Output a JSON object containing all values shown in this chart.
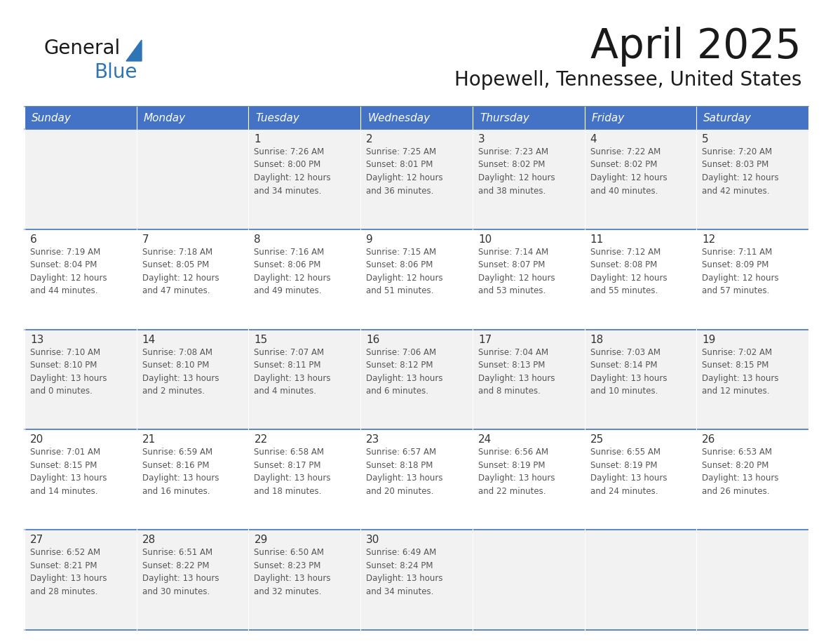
{
  "title": "April 2025",
  "subtitle": "Hopewell, Tennessee, United States",
  "days_of_week": [
    "Sunday",
    "Monday",
    "Tuesday",
    "Wednesday",
    "Thursday",
    "Friday",
    "Saturday"
  ],
  "header_bg": "#4472C4",
  "header_text": "#FFFFFF",
  "row_bg_even": "#F2F2F2",
  "row_bg_odd": "#FFFFFF",
  "cell_border_color": "#4472C4",
  "day_number_color": "#333333",
  "text_color": "#555555",
  "logo_general_color": "#1a1a1a",
  "logo_blue_color": "#2E75B6",
  "logo_triangle_color": "#2E75B6",
  "title_color": "#1a1a1a",
  "weeks": [
    [
      {
        "day": "",
        "info": ""
      },
      {
        "day": "",
        "info": ""
      },
      {
        "day": "1",
        "info": "Sunrise: 7:26 AM\nSunset: 8:00 PM\nDaylight: 12 hours\nand 34 minutes."
      },
      {
        "day": "2",
        "info": "Sunrise: 7:25 AM\nSunset: 8:01 PM\nDaylight: 12 hours\nand 36 minutes."
      },
      {
        "day": "3",
        "info": "Sunrise: 7:23 AM\nSunset: 8:02 PM\nDaylight: 12 hours\nand 38 minutes."
      },
      {
        "day": "4",
        "info": "Sunrise: 7:22 AM\nSunset: 8:02 PM\nDaylight: 12 hours\nand 40 minutes."
      },
      {
        "day": "5",
        "info": "Sunrise: 7:20 AM\nSunset: 8:03 PM\nDaylight: 12 hours\nand 42 minutes."
      }
    ],
    [
      {
        "day": "6",
        "info": "Sunrise: 7:19 AM\nSunset: 8:04 PM\nDaylight: 12 hours\nand 44 minutes."
      },
      {
        "day": "7",
        "info": "Sunrise: 7:18 AM\nSunset: 8:05 PM\nDaylight: 12 hours\nand 47 minutes."
      },
      {
        "day": "8",
        "info": "Sunrise: 7:16 AM\nSunset: 8:06 PM\nDaylight: 12 hours\nand 49 minutes."
      },
      {
        "day": "9",
        "info": "Sunrise: 7:15 AM\nSunset: 8:06 PM\nDaylight: 12 hours\nand 51 minutes."
      },
      {
        "day": "10",
        "info": "Sunrise: 7:14 AM\nSunset: 8:07 PM\nDaylight: 12 hours\nand 53 minutes."
      },
      {
        "day": "11",
        "info": "Sunrise: 7:12 AM\nSunset: 8:08 PM\nDaylight: 12 hours\nand 55 minutes."
      },
      {
        "day": "12",
        "info": "Sunrise: 7:11 AM\nSunset: 8:09 PM\nDaylight: 12 hours\nand 57 minutes."
      }
    ],
    [
      {
        "day": "13",
        "info": "Sunrise: 7:10 AM\nSunset: 8:10 PM\nDaylight: 13 hours\nand 0 minutes."
      },
      {
        "day": "14",
        "info": "Sunrise: 7:08 AM\nSunset: 8:10 PM\nDaylight: 13 hours\nand 2 minutes."
      },
      {
        "day": "15",
        "info": "Sunrise: 7:07 AM\nSunset: 8:11 PM\nDaylight: 13 hours\nand 4 minutes."
      },
      {
        "day": "16",
        "info": "Sunrise: 7:06 AM\nSunset: 8:12 PM\nDaylight: 13 hours\nand 6 minutes."
      },
      {
        "day": "17",
        "info": "Sunrise: 7:04 AM\nSunset: 8:13 PM\nDaylight: 13 hours\nand 8 minutes."
      },
      {
        "day": "18",
        "info": "Sunrise: 7:03 AM\nSunset: 8:14 PM\nDaylight: 13 hours\nand 10 minutes."
      },
      {
        "day": "19",
        "info": "Sunrise: 7:02 AM\nSunset: 8:15 PM\nDaylight: 13 hours\nand 12 minutes."
      }
    ],
    [
      {
        "day": "20",
        "info": "Sunrise: 7:01 AM\nSunset: 8:15 PM\nDaylight: 13 hours\nand 14 minutes."
      },
      {
        "day": "21",
        "info": "Sunrise: 6:59 AM\nSunset: 8:16 PM\nDaylight: 13 hours\nand 16 minutes."
      },
      {
        "day": "22",
        "info": "Sunrise: 6:58 AM\nSunset: 8:17 PM\nDaylight: 13 hours\nand 18 minutes."
      },
      {
        "day": "23",
        "info": "Sunrise: 6:57 AM\nSunset: 8:18 PM\nDaylight: 13 hours\nand 20 minutes."
      },
      {
        "day": "24",
        "info": "Sunrise: 6:56 AM\nSunset: 8:19 PM\nDaylight: 13 hours\nand 22 minutes."
      },
      {
        "day": "25",
        "info": "Sunrise: 6:55 AM\nSunset: 8:19 PM\nDaylight: 13 hours\nand 24 minutes."
      },
      {
        "day": "26",
        "info": "Sunrise: 6:53 AM\nSunset: 8:20 PM\nDaylight: 13 hours\nand 26 minutes."
      }
    ],
    [
      {
        "day": "27",
        "info": "Sunrise: 6:52 AM\nSunset: 8:21 PM\nDaylight: 13 hours\nand 28 minutes."
      },
      {
        "day": "28",
        "info": "Sunrise: 6:51 AM\nSunset: 8:22 PM\nDaylight: 13 hours\nand 30 minutes."
      },
      {
        "day": "29",
        "info": "Sunrise: 6:50 AM\nSunset: 8:23 PM\nDaylight: 13 hours\nand 32 minutes."
      },
      {
        "day": "30",
        "info": "Sunrise: 6:49 AM\nSunset: 8:24 PM\nDaylight: 13 hours\nand 34 minutes."
      },
      {
        "day": "",
        "info": ""
      },
      {
        "day": "",
        "info": ""
      },
      {
        "day": "",
        "info": ""
      }
    ]
  ],
  "figsize": [
    11.88,
    9.18
  ],
  "dpi": 100
}
